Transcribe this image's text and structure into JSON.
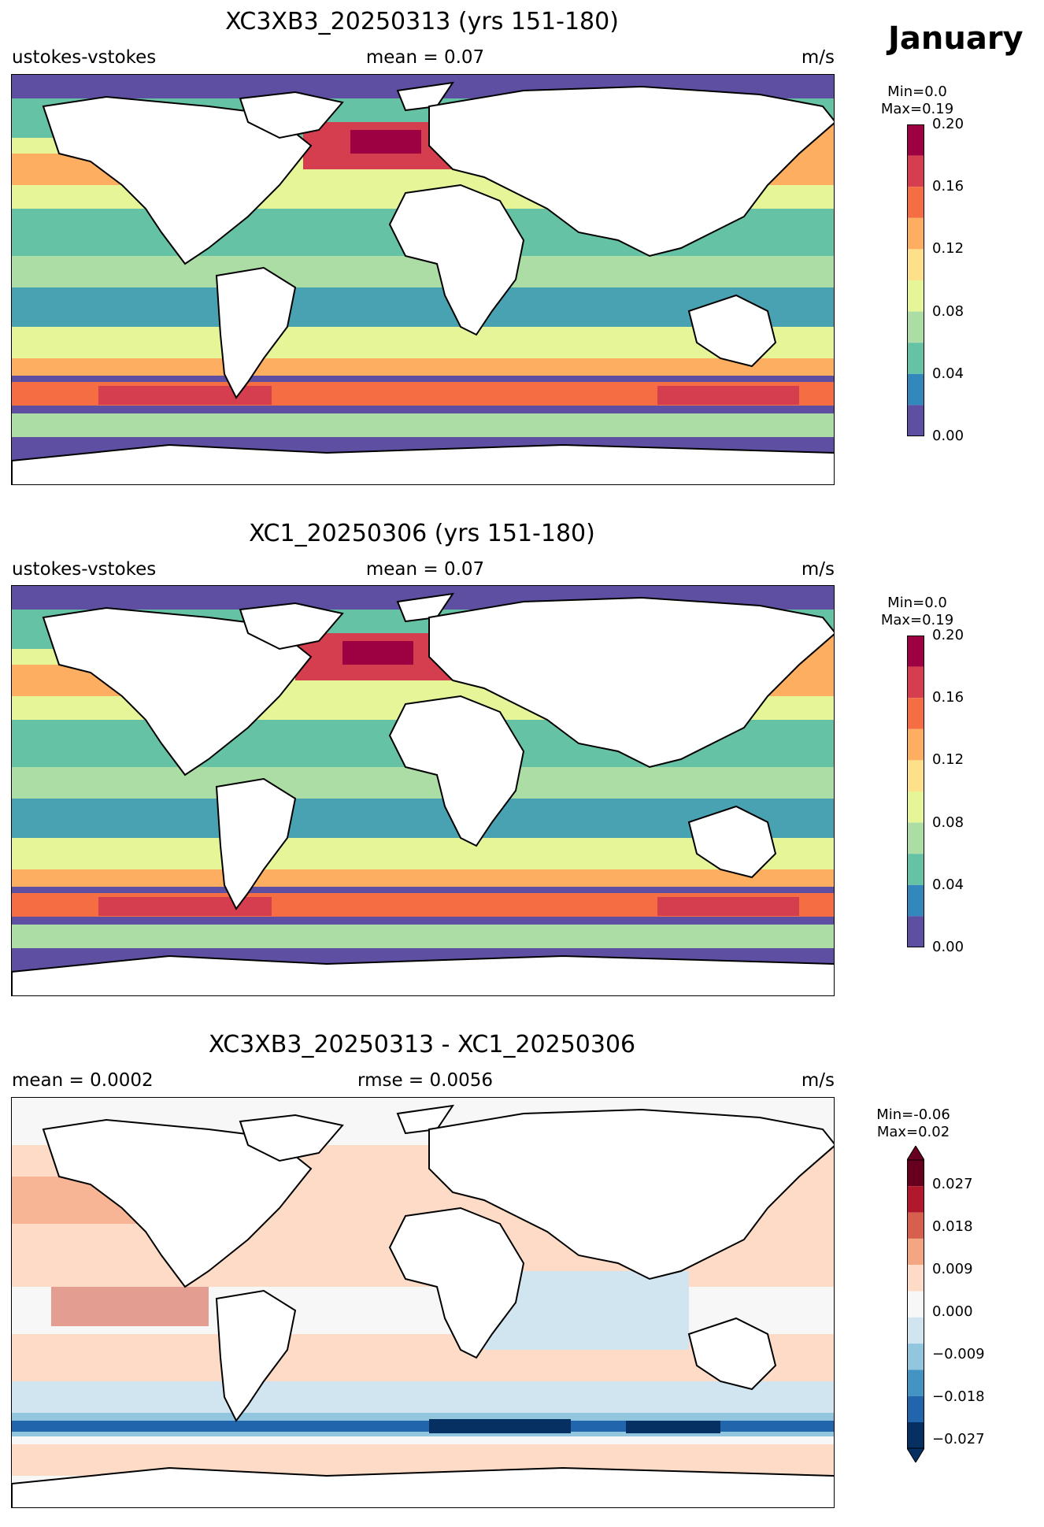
{
  "month": "January",
  "units": "m/s",
  "panels": [
    {
      "title": "XC3XB3_20250313 (yrs 151-180)",
      "left": "ustokes-vstokes",
      "center": "mean = 0.07",
      "right": "m/s",
      "min_label": "Min=0.0",
      "max_label": "Max=0.19",
      "colorbar_ticks": [
        "0.20",
        "0.16",
        "0.12",
        "0.08",
        "0.04",
        "0.00"
      ]
    },
    {
      "title": "XC1_20250306 (yrs 151-180)",
      "left": "ustokes-vstokes",
      "center": "mean = 0.07",
      "right": "m/s",
      "min_label": "Min=0.0",
      "max_label": "Max=0.19",
      "colorbar_ticks": [
        "0.20",
        "0.16",
        "0.12",
        "0.08",
        "0.04",
        "0.00"
      ]
    },
    {
      "title": "XC3XB3_20250313 - XC1_20250306",
      "left": "mean = 0.0002",
      "center": "rmse = 0.0056",
      "right": "m/s",
      "min_label": "Min=-0.06",
      "max_label": "Max=0.02",
      "colorbar_ticks": [
        "0.027",
        "0.018",
        "0.009",
        "0.000",
        "−0.009",
        "−0.018",
        "−0.027"
      ]
    }
  ],
  "colormaps": {
    "spectral_levels": [
      "#5e4fa2",
      "#3288bd",
      "#66c2a5",
      "#abdda4",
      "#e6f598",
      "#fee08b",
      "#fdae61",
      "#f46d43",
      "#d53e4f",
      "#9e0142"
    ],
    "diverging_levels": [
      "#053061",
      "#2166ac",
      "#4393c3",
      "#92c5de",
      "#d1e5f0",
      "#f7f7f7",
      "#fddbc7",
      "#f4a582",
      "#d6604d",
      "#b2182b",
      "#67001f"
    ]
  }
}
